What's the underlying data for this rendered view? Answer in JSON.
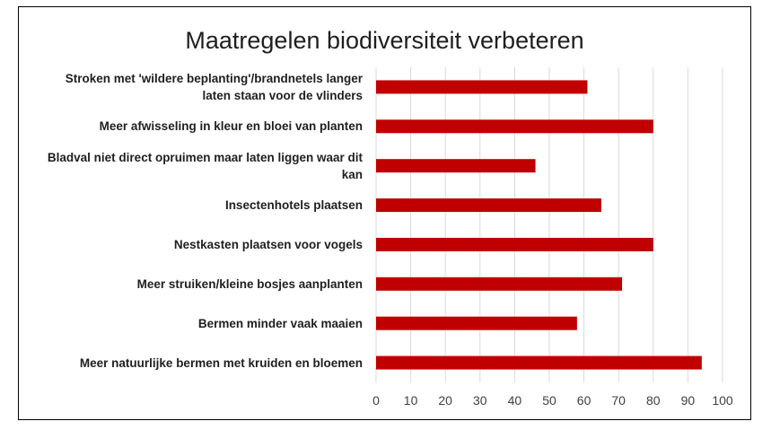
{
  "chart_data": {
    "type": "bar",
    "orientation": "horizontal",
    "title": "Maatregelen biodiversiteit verbeteren",
    "categories": [
      "Stroken met 'wildere beplanting'/brandnetels langer laten staan voor de vlinders",
      "Meer afwisseling in kleur en bloei van planten",
      "Bladval niet direct opruimen maar laten liggen waar dit kan",
      "Insectenhotels plaatsen",
      "Nestkasten plaatsen voor vogels",
      "Meer struiken/kleine bosjes aanplanten",
      "Bermen minder vaak maaien",
      "Meer natuurlijke bermen met kruiden en bloemen"
    ],
    "category_lines": [
      [
        "Stroken met 'wildere beplanting'/brandnetels langer",
        "laten staan voor de vlinders"
      ],
      [
        "Meer afwisseling in kleur en bloei van planten"
      ],
      [
        "Bladval niet direct opruimen maar laten liggen waar dit",
        "kan"
      ],
      [
        "Insectenhotels plaatsen"
      ],
      [
        "Nestkasten plaatsen voor vogels"
      ],
      [
        "Meer struiken/kleine bosjes aanplanten"
      ],
      [
        "Bermen minder vaak maaien"
      ],
      [
        "Meer natuurlijke bermen met kruiden en bloemen"
      ]
    ],
    "values": [
      61,
      80,
      46,
      65,
      80,
      71,
      58,
      94
    ],
    "xlim": [
      0,
      100
    ],
    "xticks": [
      0,
      10,
      20,
      30,
      40,
      50,
      60,
      70,
      80,
      90,
      100
    ],
    "grid": true,
    "legend": "none",
    "bar_color": "#c00000"
  }
}
